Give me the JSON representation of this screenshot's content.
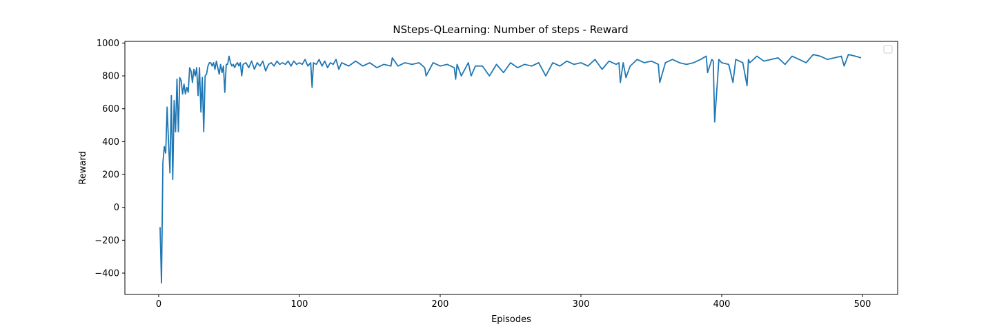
{
  "chart_data": {
    "type": "line",
    "title": "NSteps-QLearning: Number of steps - Reward",
    "xlabel": "Episodes",
    "ylabel": "Reward",
    "xlim": [
      -24,
      525
    ],
    "ylim": [
      -530,
      1010
    ],
    "x_ticks": [
      0,
      100,
      200,
      300,
      400,
      500
    ],
    "y_ticks": [
      -400,
      -200,
      0,
      200,
      400,
      600,
      800,
      1000
    ],
    "grid": false,
    "legend": "top-right, empty",
    "line_color": "#1f77b4",
    "series": [
      {
        "x": [
          1,
          2,
          3,
          4,
          5,
          6,
          7,
          8,
          9,
          10,
          11,
          12,
          13,
          14,
          15,
          16,
          17,
          18,
          19,
          20,
          21,
          22,
          23,
          24,
          25,
          26,
          27,
          28,
          29,
          30,
          31,
          32,
          33,
          34,
          35,
          36,
          37,
          38,
          39,
          40,
          41,
          42,
          43,
          44,
          45,
          46,
          47,
          48,
          49,
          50,
          51,
          52,
          53,
          54,
          55,
          56,
          57,
          58,
          59,
          60,
          62,
          64,
          66,
          68,
          70,
          72,
          74,
          76,
          78,
          80,
          82,
          84,
          86,
          88,
          90,
          92,
          94,
          96,
          98,
          100,
          102,
          104,
          106,
          108,
          109,
          110,
          112,
          114,
          116,
          118,
          120,
          122,
          124,
          126,
          128,
          130,
          135,
          140,
          145,
          150,
          155,
          160,
          165,
          166,
          170,
          175,
          180,
          185,
          189,
          190,
          195,
          200,
          205,
          210,
          211,
          212,
          215,
          220,
          222,
          225,
          230,
          235,
          240,
          245,
          250,
          255,
          260,
          265,
          270,
          275,
          280,
          285,
          290,
          295,
          300,
          305,
          310,
          315,
          320,
          325,
          327,
          328,
          330,
          332,
          335,
          340,
          345,
          350,
          355,
          356,
          360,
          365,
          370,
          375,
          380,
          385,
          389,
          390,
          393,
          394,
          395,
          398,
          400,
          405,
          408,
          410,
          415,
          418,
          419,
          420,
          425,
          430,
          435,
          440,
          445,
          450,
          455,
          460,
          465,
          470,
          475,
          480,
          485,
          487,
          490,
          495,
          499
        ],
        "values": [
          -120,
          -460,
          270,
          370,
          330,
          610,
          400,
          210,
          680,
          170,
          650,
          460,
          780,
          460,
          790,
          770,
          690,
          750,
          690,
          730,
          700,
          850,
          830,
          760,
          840,
          800,
          850,
          680,
          850,
          580,
          790,
          460,
          800,
          810,
          860,
          880,
          880,
          860,
          880,
          840,
          890,
          850,
          810,
          870,
          820,
          860,
          700,
          870,
          870,
          920,
          880,
          860,
          870,
          850,
          870,
          880,
          860,
          880,
          800,
          870,
          880,
          850,
          890,
          840,
          880,
          860,
          890,
          830,
          870,
          880,
          860,
          890,
          870,
          880,
          870,
          890,
          860,
          890,
          870,
          880,
          870,
          900,
          860,
          880,
          730,
          880,
          870,
          900,
          860,
          890,
          850,
          880,
          870,
          900,
          840,
          880,
          860,
          890,
          860,
          880,
          850,
          870,
          860,
          910,
          860,
          880,
          870,
          880,
          850,
          800,
          880,
          860,
          870,
          850,
          780,
          870,
          800,
          880,
          800,
          860,
          860,
          800,
          870,
          820,
          880,
          850,
          870,
          860,
          880,
          800,
          880,
          860,
          890,
          870,
          880,
          860,
          900,
          840,
          890,
          870,
          880,
          760,
          880,
          790,
          860,
          900,
          880,
          890,
          870,
          760,
          880,
          900,
          880,
          870,
          880,
          900,
          920,
          820,
          900,
          890,
          520,
          900,
          880,
          870,
          760,
          900,
          880,
          740,
          900,
          880,
          920,
          890,
          900,
          910,
          870,
          920,
          900,
          880,
          930,
          920,
          900,
          910,
          920,
          860,
          930,
          920,
          910
        ]
      }
    ]
  }
}
